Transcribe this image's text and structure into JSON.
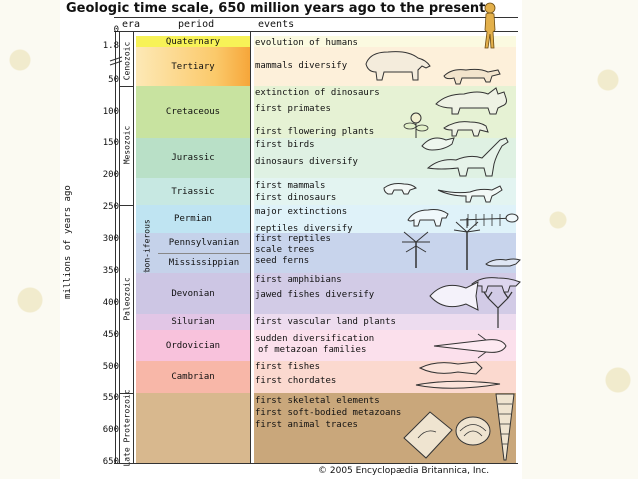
{
  "title": "Geologic time scale, 650 million years ago to the present",
  "headers": {
    "era": "era",
    "period": "period",
    "events": "events"
  },
  "y_axis_label": "millions of years ago",
  "ticks": [
    "0",
    "1.8",
    "50",
    "100",
    "150",
    "200",
    "250",
    "300",
    "350",
    "400",
    "450",
    "500",
    "550",
    "600",
    "650"
  ],
  "eras": {
    "cenozoic": "Cenozoic",
    "mesozoic": "Mesozoic",
    "paleozoic": "Paleozoic",
    "late_proterozoic": "Late Proterozoic"
  },
  "carboniferous": "Carbon-iferous",
  "periods": {
    "quaternary": "Quaternary",
    "tertiary": "Tertiary",
    "cretaceous": "Cretaceous",
    "jurassic": "Jurassic",
    "triassic": "Triassic",
    "permian": "Permian",
    "pennsylvanian": "Pennsylvanian",
    "mississippian": "Mississippian",
    "devonian": "Devonian",
    "silurian": "Silurian",
    "ordovician": "Ordovician",
    "cambrian": "Cambrian"
  },
  "events": {
    "e1": "evolution of humans",
    "e2": "mammals diversify",
    "e3": "extinction of dinosaurs",
    "e4": "first primates",
    "e5": "first flowering plants",
    "e6": "first birds",
    "e7": "dinosaurs diversify",
    "e8": "first mammals",
    "e9": "first dinosaurs",
    "e10": "major extinctions",
    "e11": "reptiles diversify",
    "e12": "first reptiles",
    "e13": "scale trees",
    "e14": "seed ferns",
    "e15": "first amphibians",
    "e16": "jawed fishes diversify",
    "e17": "first vascular land plants",
    "e18": "sudden diversification",
    "e19": "of metazoan families",
    "e20": "first fishes",
    "e21": "first chordates",
    "e22": "first skeletal elements",
    "e23": "first soft-bodied metazoans",
    "e24": "first animal traces"
  },
  "copyright": "© 2005 Encyclopædia Britannica, Inc.",
  "colors": {
    "quaternary": "#f7f257",
    "tertiary": "#fbc96a",
    "cretaceous": "#c8e3a0",
    "jurassic": "#b9e0c7",
    "triassic": "#c7e8e2",
    "permian": "#bfe4f2",
    "carboniferous": "#c5d2ea",
    "devonian": "#cdc6e4",
    "silurian": "#e2c6e6",
    "ordovician": "#f8c2dc",
    "cambrian": "#f8b7a8",
    "proterozoic": "#d8b88e"
  }
}
